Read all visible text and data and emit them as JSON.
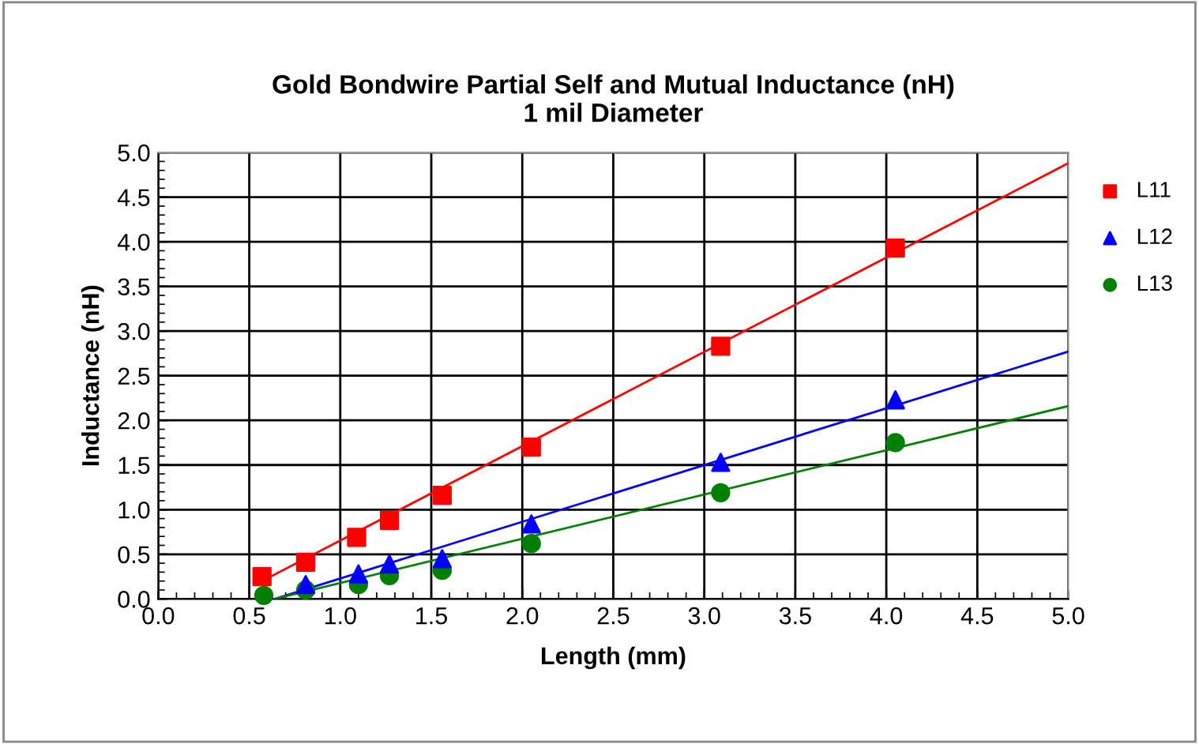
{
  "chart_data": {
    "type": "scatter",
    "title": "Gold Bondwire Partial Self and Mutual Inductance (nH)\n1 mil Diameter",
    "xlabel": "Length (mm)",
    "ylabel": "Inductance (nH)",
    "xlim": [
      0,
      5
    ],
    "ylim": [
      0,
      5
    ],
    "xticks": [
      {
        "value": 0,
        "label": "0.0"
      },
      0.5,
      {
        "value": 1,
        "label": "1.0"
      },
      1.5,
      {
        "value": 2,
        "label": "2.0"
      },
      2.5,
      {
        "value": 3,
        "label": "3.0"
      },
      3.5,
      {
        "value": 4,
        "label": "4.0"
      },
      4.5,
      {
        "value": 5,
        "label": "5.0"
      }
    ],
    "yticks": [
      {
        "value": 0,
        "label": "0.0"
      },
      0.5,
      {
        "value": 1,
        "label": "1.0"
      },
      1.5,
      {
        "value": 2,
        "label": "2.0"
      },
      2.5,
      {
        "value": 3,
        "label": "3.0"
      },
      3.5,
      {
        "value": 4,
        "label": "4.0"
      },
      4.5,
      {
        "value": 5,
        "label": "5.0"
      }
    ],
    "grid": true,
    "legend": "right",
    "series": [
      {
        "type": "line",
        "color": "#ff0000",
        "x": [
          0.57,
          5.0
        ],
        "values": [
          0.2,
          4.88
        ]
      },
      {
        "type": "line",
        "color": "#0000ff",
        "x": [
          0.64,
          5.0
        ],
        "values": [
          0.0,
          2.77
        ]
      },
      {
        "type": "line",
        "color": "#008000",
        "x": [
          0.64,
          5.0
        ],
        "values": [
          0.0,
          2.16
        ]
      },
      {
        "name": "L11",
        "marker": "square",
        "color": "#ff0000",
        "x": [
          0.57,
          0.81,
          1.09,
          1.27,
          1.56,
          2.05,
          3.09,
          4.05
        ],
        "values": [
          0.25,
          0.41,
          0.69,
          0.88,
          1.16,
          1.7,
          2.83,
          3.93
        ]
      },
      {
        "name": "L12",
        "marker": "triangle",
        "color": "#0000ff",
        "x": [
          0.81,
          1.1,
          1.27,
          1.56,
          2.05,
          3.09,
          4.05
        ],
        "values": [
          0.16,
          0.28,
          0.39,
          0.45,
          0.84,
          1.53,
          2.23
        ]
      },
      {
        "name": "L13",
        "marker": "circle",
        "color": "#008000",
        "x": [
          0.58,
          0.81,
          1.1,
          1.27,
          1.56,
          2.05,
          3.09,
          4.05
        ],
        "values": [
          0.04,
          0.1,
          0.16,
          0.26,
          0.32,
          0.62,
          1.19,
          1.75
        ]
      }
    ]
  }
}
